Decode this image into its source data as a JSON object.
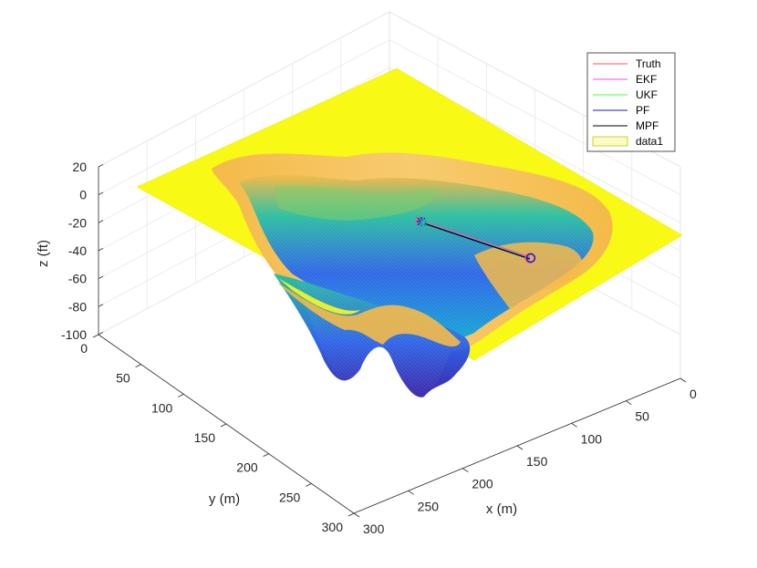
{
  "chart_data": {
    "type": "surface3d",
    "title": "",
    "xlabel": "x (m)",
    "ylabel": "y (m)",
    "zlabel": "z (ft)",
    "xlim": [
      0,
      300
    ],
    "ylim": [
      0,
      300
    ],
    "zlim": [
      -100,
      20
    ],
    "x_ticks": [
      "0",
      "50",
      "100",
      "150",
      "200",
      "250",
      "300"
    ],
    "y_ticks": [
      "0",
      "50",
      "100",
      "150",
      "200",
      "250",
      "300"
    ],
    "z_ticks": [
      "20",
      "0",
      "-20",
      "-40",
      "-60",
      "-80",
      "-100"
    ],
    "grid": true,
    "colormap": [
      "#3d26a8",
      "#2f66e8",
      "#15a7d5",
      "#2bbfa0",
      "#7fca65",
      "#f4b843",
      "#f9f916"
    ],
    "legend": {
      "placement": "top-right",
      "entries": [
        {
          "name": "Truth",
          "color": "#ff5050"
        },
        {
          "name": "EKF",
          "color": "#ff40ff"
        },
        {
          "name": "UKF",
          "color": "#40ff40"
        },
        {
          "name": "PF",
          "color": "#1010ff"
        },
        {
          "name": "MPF",
          "color": "#000000"
        },
        {
          "name": "data1",
          "color": "#c8c800"
        }
      ]
    },
    "trajectory": {
      "start": {
        "x": 110,
        "y": 55,
        "z": -17
      },
      "end": {
        "x": 145,
        "y": 175,
        "z": -30
      },
      "start_marker": "star",
      "end_marker": "circle"
    }
  }
}
